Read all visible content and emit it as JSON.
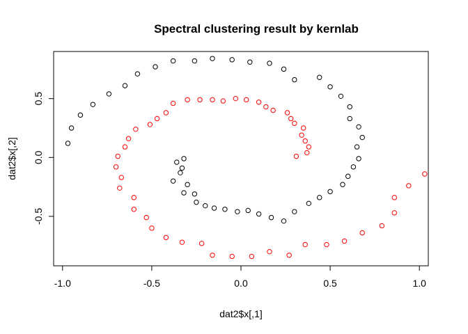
{
  "chart_data": {
    "type": "scatter",
    "title": "Spectral clustering result by kernlab",
    "xlabel": "dat2$x[,1]",
    "ylabel": "dat2$x[,2]",
    "xlim": [
      -1.05,
      1.05
    ],
    "ylim": [
      -0.92,
      0.9
    ],
    "xticks": [
      -1.0,
      -0.5,
      0.0,
      0.5,
      1.0
    ],
    "xtick_labels": [
      "-1.0",
      "-0.5",
      "0.0",
      "0.5",
      "1.0"
    ],
    "yticks": [
      -0.5,
      0.0,
      0.5
    ],
    "ytick_labels": [
      "-0.5",
      "0.0",
      "0.5"
    ],
    "grid": false,
    "series": [
      {
        "color": "#000000",
        "marker": "open-circle",
        "points": [
          [
            -0.97,
            0.12
          ],
          [
            -0.95,
            0.25
          ],
          [
            -0.9,
            0.36
          ],
          [
            -0.83,
            0.45
          ],
          [
            -0.74,
            0.54
          ],
          [
            -0.65,
            0.61
          ],
          [
            -0.58,
            0.71
          ],
          [
            -0.48,
            0.77
          ],
          [
            -0.38,
            0.82
          ],
          [
            -0.26,
            0.82
          ],
          [
            -0.16,
            0.84
          ],
          [
            -0.05,
            0.83
          ],
          [
            0.05,
            0.81
          ],
          [
            0.16,
            0.8
          ],
          [
            0.24,
            0.75
          ],
          [
            0.3,
            0.66
          ],
          [
            0.44,
            0.68
          ],
          [
            0.5,
            0.6
          ],
          [
            0.56,
            0.52
          ],
          [
            0.61,
            0.43
          ],
          [
            0.61,
            0.33
          ],
          [
            0.66,
            0.26
          ],
          [
            0.68,
            0.17
          ],
          [
            0.65,
            0.09
          ],
          [
            0.66,
            -0.01
          ],
          [
            0.63,
            -0.08
          ],
          [
            0.6,
            -0.16
          ],
          [
            0.57,
            -0.23
          ],
          [
            0.5,
            -0.29
          ],
          [
            0.44,
            -0.34
          ],
          [
            0.38,
            -0.39
          ],
          [
            0.3,
            -0.46
          ],
          [
            0.24,
            -0.54
          ],
          [
            0.17,
            -0.51
          ],
          [
            0.1,
            -0.48
          ],
          [
            0.04,
            -0.45
          ],
          [
            -0.02,
            -0.46
          ],
          [
            -0.09,
            -0.44
          ],
          [
            -0.15,
            -0.43
          ],
          [
            -0.2,
            -0.41
          ],
          [
            -0.25,
            -0.38
          ],
          [
            -0.26,
            -0.31
          ],
          [
            -0.3,
            -0.23
          ],
          [
            -0.32,
            -0.3
          ],
          [
            -0.38,
            -0.2
          ],
          [
            -0.33,
            -0.09
          ],
          [
            -0.34,
            -0.13
          ],
          [
            -0.36,
            -0.04
          ],
          [
            -0.32,
            -0.01
          ]
        ]
      },
      {
        "color": "#ff0000",
        "marker": "open-circle",
        "points": [
          [
            -0.38,
            0.46
          ],
          [
            -0.3,
            0.49
          ],
          [
            -0.23,
            0.49
          ],
          [
            -0.16,
            0.49
          ],
          [
            -0.1,
            0.48
          ],
          [
            -0.03,
            0.5
          ],
          [
            0.03,
            0.49
          ],
          [
            0.1,
            0.47
          ],
          [
            0.14,
            0.43
          ],
          [
            0.18,
            0.4
          ],
          [
            0.26,
            0.38
          ],
          [
            0.28,
            0.33
          ],
          [
            0.3,
            0.29
          ],
          [
            0.35,
            0.25
          ],
          [
            0.34,
            0.19
          ],
          [
            0.36,
            0.14
          ],
          [
            0.38,
            0.09
          ],
          [
            0.37,
            0.04
          ],
          [
            0.31,
            0.01
          ],
          [
            -0.42,
            0.38
          ],
          [
            -0.47,
            0.33
          ],
          [
            -0.51,
            0.28
          ],
          [
            -0.59,
            0.24
          ],
          [
            -0.63,
            0.16
          ],
          [
            -0.65,
            0.09
          ],
          [
            -0.69,
            0.01
          ],
          [
            -0.7,
            -0.08
          ],
          [
            -0.67,
            -0.17
          ],
          [
            -0.68,
            -0.26
          ],
          [
            -0.6,
            -0.34
          ],
          [
            -0.6,
            -0.44
          ],
          [
            -0.53,
            -0.51
          ],
          [
            -0.5,
            -0.6
          ],
          [
            -0.42,
            -0.68
          ],
          [
            -0.33,
            -0.72
          ],
          [
            -0.22,
            -0.73
          ],
          [
            -0.16,
            -0.83
          ],
          [
            -0.05,
            -0.84
          ],
          [
            0.06,
            -0.84
          ],
          [
            0.16,
            -0.8
          ],
          [
            0.27,
            -0.83
          ],
          [
            0.36,
            -0.74
          ],
          [
            0.48,
            -0.74
          ],
          [
            0.58,
            -0.71
          ],
          [
            0.68,
            -0.64
          ],
          [
            0.79,
            -0.58
          ],
          [
            0.86,
            -0.47
          ],
          [
            0.86,
            -0.34
          ],
          [
            0.94,
            -0.24
          ],
          [
            1.03,
            -0.14
          ]
        ]
      }
    ]
  }
}
